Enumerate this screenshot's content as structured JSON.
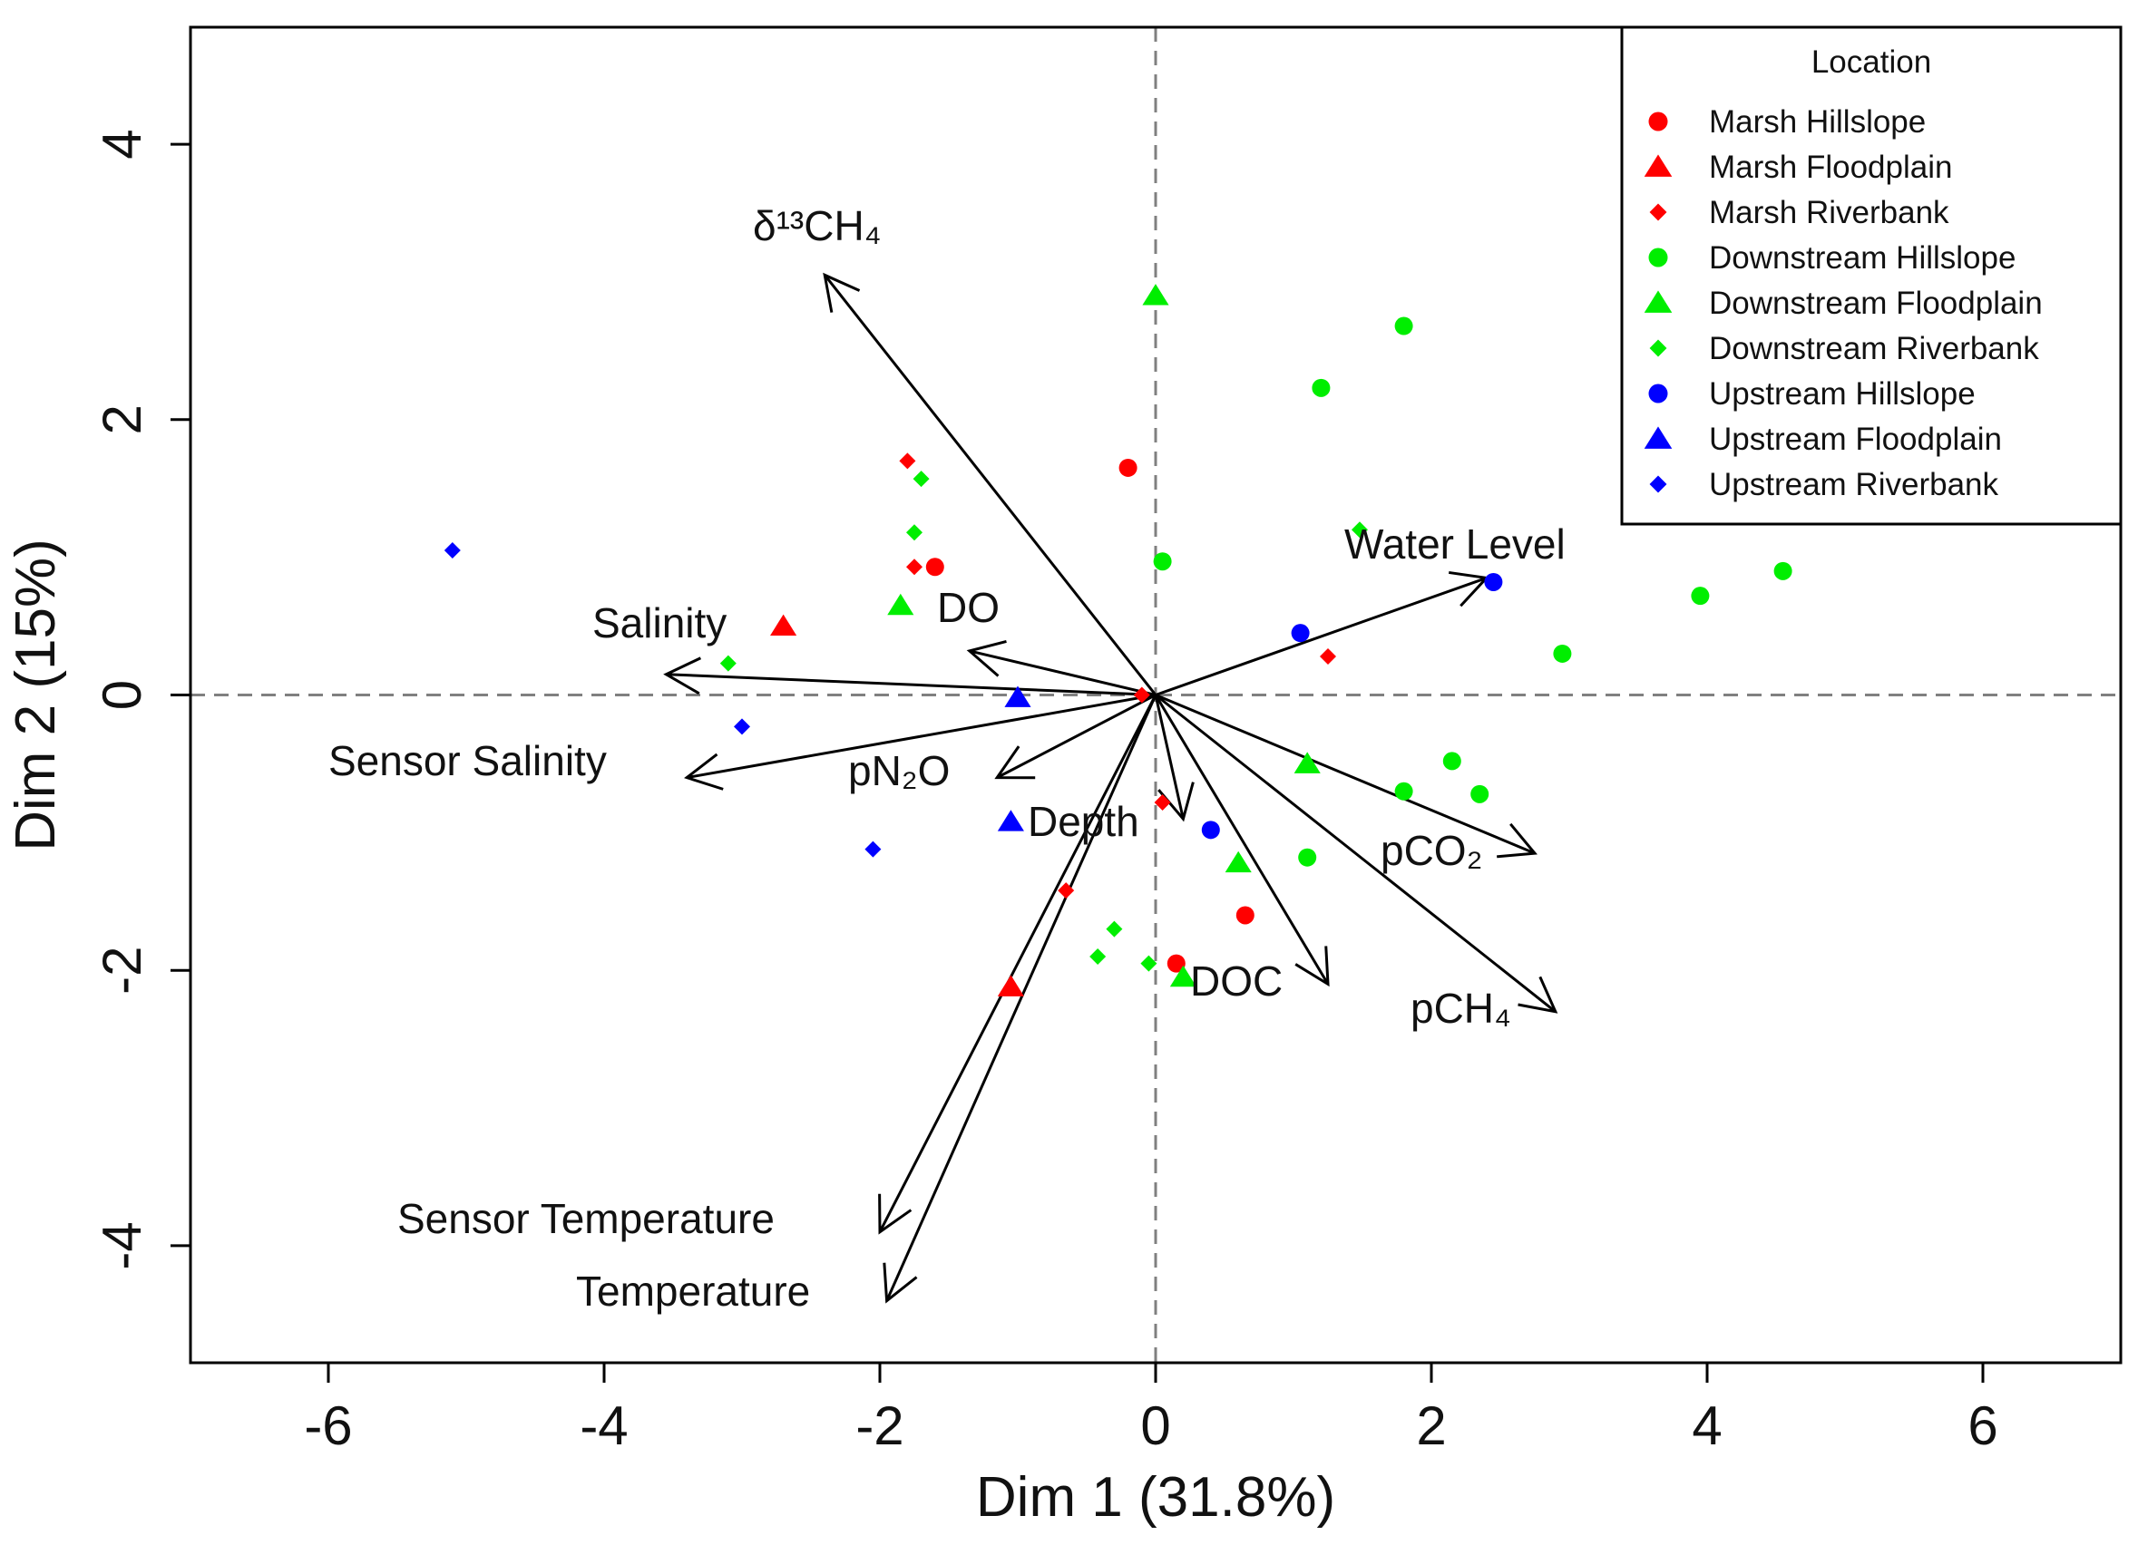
{
  "colors": {
    "red": "#ff0000",
    "green": "#00ee00",
    "blue": "#0000ff",
    "axis": "#000000",
    "ref": "#808080"
  },
  "chart_data": {
    "type": "scatter",
    "subtype": "pca-biplot",
    "title": "",
    "xlabel": "Dim 1 (31.8%)",
    "ylabel": "Dim 2 (15%)",
    "xlim": [
      -7,
      7
    ],
    "ylim": [
      -4.85,
      4.85
    ],
    "xticks": [
      "-6",
      "-4",
      "-2",
      "0",
      "2",
      "4",
      "6"
    ],
    "yticks": [
      "4",
      "2",
      "0",
      "-2",
      "-4"
    ],
    "xtick_values": [
      -6,
      -4,
      -2,
      0,
      2,
      4,
      6
    ],
    "ytick_values": [
      4,
      2,
      0,
      -2,
      -4
    ],
    "reference_lines": {
      "x": 0,
      "y": 0,
      "style": "dashed"
    },
    "legend": {
      "title": "Location",
      "placement": "top-right",
      "entries": [
        {
          "label": "Marsh Hillslope",
          "color": "#ff0000",
          "shape": "circle"
        },
        {
          "label": "Marsh Floodplain",
          "color": "#ff0000",
          "shape": "triangle"
        },
        {
          "label": "Marsh Riverbank",
          "color": "#ff0000",
          "shape": "diamond"
        },
        {
          "label": "Downstream Hillslope",
          "color": "#00ee00",
          "shape": "circle"
        },
        {
          "label": "Downstream Floodplain",
          "color": "#00ee00",
          "shape": "triangle"
        },
        {
          "label": "Downstream Riverbank",
          "color": "#00ee00",
          "shape": "diamond"
        },
        {
          "label": "Upstream Hillslope",
          "color": "#0000ff",
          "shape": "circle"
        },
        {
          "label": "Upstream Floodplain",
          "color": "#0000ff",
          "shape": "triangle"
        },
        {
          "label": "Upstream Riverbank",
          "color": "#0000ff",
          "shape": "diamond"
        }
      ]
    },
    "series": [
      {
        "name": "Marsh Hillslope",
        "color": "#ff0000",
        "shape": "circle",
        "points": [
          [
            -0.2,
            1.65
          ],
          [
            -1.6,
            0.93
          ],
          [
            0.65,
            -1.6
          ],
          [
            0.15,
            -1.95
          ]
        ]
      },
      {
        "name": "Marsh Floodplain",
        "color": "#ff0000",
        "shape": "triangle",
        "points": [
          [
            -2.7,
            0.5
          ],
          [
            -1.05,
            -2.12
          ]
        ]
      },
      {
        "name": "Marsh Riverbank",
        "color": "#ff0000",
        "shape": "diamond",
        "points": [
          [
            -1.8,
            1.7
          ],
          [
            -1.75,
            0.93
          ],
          [
            1.25,
            0.28
          ],
          [
            0.05,
            -0.78
          ],
          [
            -0.65,
            -1.42
          ],
          [
            -0.1,
            0.0
          ]
        ]
      },
      {
        "name": "Downstream Hillslope",
        "color": "#00ee00",
        "shape": "circle",
        "points": [
          [
            1.8,
            2.68
          ],
          [
            1.2,
            2.23
          ],
          [
            0.05,
            0.97
          ],
          [
            3.95,
            0.72
          ],
          [
            4.55,
            0.9
          ],
          [
            2.95,
            0.3
          ],
          [
            2.15,
            -0.48
          ],
          [
            2.35,
            -0.72
          ],
          [
            1.8,
            -0.7
          ],
          [
            1.1,
            -1.18
          ]
        ]
      },
      {
        "name": "Downstream Floodplain",
        "color": "#00ee00",
        "shape": "triangle",
        "points": [
          [
            0.0,
            2.9
          ],
          [
            -1.85,
            0.65
          ],
          [
            1.1,
            -0.5
          ],
          [
            0.6,
            -1.22
          ],
          [
            0.2,
            -2.05
          ]
        ]
      },
      {
        "name": "Downstream Riverbank",
        "color": "#00ee00",
        "shape": "diamond",
        "points": [
          [
            -1.7,
            1.57
          ],
          [
            -1.75,
            1.18
          ],
          [
            -3.1,
            0.23
          ],
          [
            1.48,
            1.2
          ],
          [
            -0.3,
            -1.7
          ],
          [
            -0.42,
            -1.9
          ],
          [
            -0.05,
            -1.95
          ]
        ]
      },
      {
        "name": "Upstream Hillslope",
        "color": "#0000ff",
        "shape": "circle",
        "points": [
          [
            2.45,
            0.82
          ],
          [
            1.05,
            0.45
          ],
          [
            0.4,
            -0.98
          ]
        ]
      },
      {
        "name": "Upstream Floodplain",
        "color": "#0000ff",
        "shape": "triangle",
        "points": [
          [
            -1.0,
            -0.02
          ],
          [
            -1.05,
            -0.92
          ]
        ]
      },
      {
        "name": "Upstream Riverbank",
        "color": "#0000ff",
        "shape": "diamond",
        "points": [
          [
            -5.1,
            1.05
          ],
          [
            -3.0,
            -0.23
          ],
          [
            -2.05,
            -1.12
          ]
        ]
      }
    ],
    "loadings": [
      {
        "label": "δ13CH4",
        "label_html": "δ¹³CH₄",
        "x": -2.4,
        "y": 3.05
      },
      {
        "label": "Water Level",
        "x": 2.4,
        "y": 0.85
      },
      {
        "label": "Salinity",
        "x": -3.55,
        "y": 0.15
      },
      {
        "label": "DO",
        "x": -1.35,
        "y": 0.32
      },
      {
        "label": "Sensor Salinity",
        "x": -3.4,
        "y": -0.6
      },
      {
        "label": "pN2O",
        "label_html": "pN₂O",
        "x": -1.15,
        "y": -0.6
      },
      {
        "label": "Depth",
        "x": 0.2,
        "y": -0.9
      },
      {
        "label": "pCO2",
        "label_html": "pCO₂",
        "x": 2.75,
        "y": -1.15
      },
      {
        "label": "DOC",
        "x": 1.25,
        "y": -2.1
      },
      {
        "label": "pCH4",
        "label_html": "pCH₄",
        "x": 2.9,
        "y": -2.3
      },
      {
        "label": "Sensor Temperature",
        "x": -2.0,
        "y": -3.9
      },
      {
        "label": "Temperature",
        "x": -1.95,
        "y": -4.4
      }
    ]
  }
}
